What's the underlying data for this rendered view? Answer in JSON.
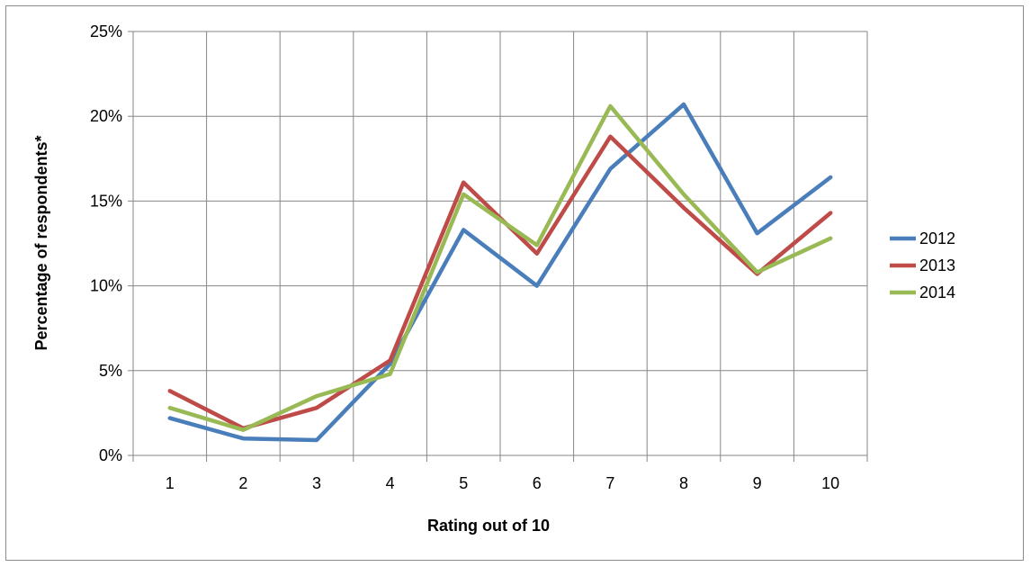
{
  "chart_data": {
    "type": "line",
    "title": "",
    "xlabel": "Rating out of 10",
    "ylabel": "Percentage of respondents*",
    "categories": [
      "1",
      "2",
      "3",
      "4",
      "5",
      "6",
      "7",
      "8",
      "9",
      "10"
    ],
    "ylim": [
      0,
      25
    ],
    "yticks": [
      "0%",
      "5%",
      "10%",
      "15%",
      "20%",
      "25%"
    ],
    "grid": true,
    "legend_position": "right",
    "series": [
      {
        "name": "2012",
        "color": "#4a7ebb",
        "values": [
          2.2,
          1.0,
          0.9,
          5.4,
          13.3,
          10.0,
          16.9,
          20.7,
          13.1,
          16.4
        ]
      },
      {
        "name": "2013",
        "color": "#be4b48",
        "values": [
          3.8,
          1.6,
          2.8,
          5.6,
          16.1,
          11.9,
          18.8,
          14.6,
          10.7,
          14.3
        ]
      },
      {
        "name": "2014",
        "color": "#98b954",
        "values": [
          2.8,
          1.5,
          3.5,
          4.8,
          15.4,
          12.4,
          20.6,
          15.4,
          10.8,
          12.8
        ]
      }
    ]
  }
}
